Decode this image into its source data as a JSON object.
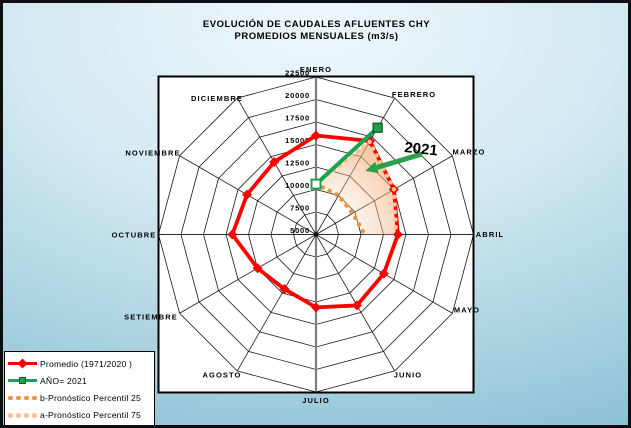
{
  "window": {
    "title_line1": "EVOLUCIÓN DE CAUDALES AFLUENTES CHY",
    "title_line2": "PROMEDIOS MENSUALES (m3/s)"
  },
  "chart_data": {
    "type": "radar",
    "categories": [
      "ENERO",
      "FEBRERO",
      "MARZO",
      "ABRIL",
      "MAYO",
      "JUNIO",
      "JULIO",
      "AGOSTO",
      "SETIEMBRE",
      "OCTUBRE",
      "NOVIEMBRE",
      "DICIEMBRE"
    ],
    "radial_axis": {
      "min": 5000,
      "max": 22500,
      "step": 2500,
      "unit": "m3/s",
      "tick_labels": [
        "22500",
        "20000",
        "17500",
        "15000",
        "12500",
        "10000",
        "7500",
        "5000"
      ]
    },
    "series": [
      {
        "name": "Promedio (1971/2020 )",
        "color": "#fe0000",
        "marker": "diamond",
        "line": "solid",
        "values": [
          16000,
          17000,
          15000,
          14100,
          13700,
          14100,
          13100,
          12000,
          12500,
          14300,
          13850,
          14300
        ]
      },
      {
        "name": "AÑO= 2021",
        "color": "#1ca24d",
        "marker": "square",
        "line": "solid",
        "values": [
          10600,
          18700,
          null,
          null,
          null,
          null,
          null,
          null,
          null,
          null,
          null,
          null
        ]
      },
      {
        "name": "b-Pronóstico Percentil 25",
        "color": "#f1903b",
        "marker": "dot",
        "line": "dotted",
        "values": [
          10600,
          10000,
          9700,
          10400,
          null,
          null,
          null,
          null,
          null,
          null,
          null,
          null
        ]
      },
      {
        "name": "a-Pronóstico Percentil 75",
        "color": "#f9c496",
        "marker": "dot",
        "line": "dotted",
        "values": [
          10600,
          16900,
          15000,
          13900,
          null,
          null,
          null,
          null,
          null,
          null,
          null,
          null
        ]
      }
    ],
    "band_between_series": [
      3,
      2
    ],
    "band_color": "#ef9352",
    "annotation": {
      "text": "2021",
      "arrow_color": "#2aa04a"
    },
    "grid": true,
    "legend_position": "bottom-left"
  }
}
